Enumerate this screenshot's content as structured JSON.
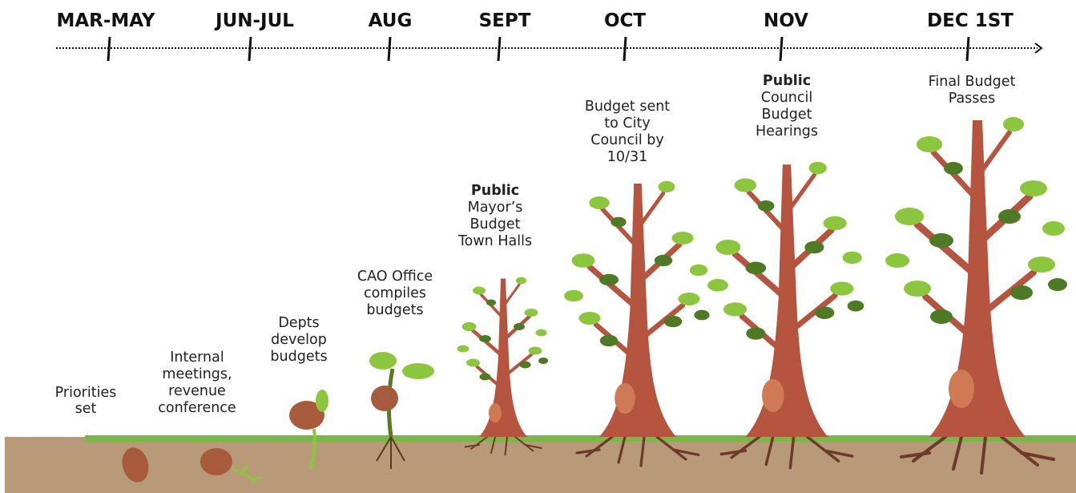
{
  "timeline": [
    {
      "label": "MAR-MAY"
    },
    {
      "label": "JUN-JUL"
    },
    {
      "label": "AUG"
    },
    {
      "label": "SEPT"
    },
    {
      "label": "OCT"
    },
    {
      "label": "NOV"
    },
    {
      "label": "DEC 1ST"
    }
  ],
  "stages": [
    {
      "lines": [
        "Priorities",
        "set"
      ]
    },
    {
      "lines": [
        "Internal",
        "meetings,",
        "revenue",
        "conference"
      ]
    },
    {
      "lines": [
        "Depts",
        "develop",
        "budgets"
      ]
    },
    {
      "lines": [
        "CAO Office",
        "compiles",
        "budgets"
      ]
    },
    {
      "emphasis": "Public",
      "lines": [
        "Mayor’s",
        "Budget",
        "Town Halls"
      ]
    },
    {
      "lines": [
        "Budget sent",
        "to City",
        "Council by",
        "10/31"
      ]
    },
    {
      "emphasis": "Public",
      "lines": [
        "Council",
        "Budget",
        "Hearings"
      ]
    },
    {
      "lines": [
        "Final Budget",
        "Passes"
      ]
    }
  ]
}
